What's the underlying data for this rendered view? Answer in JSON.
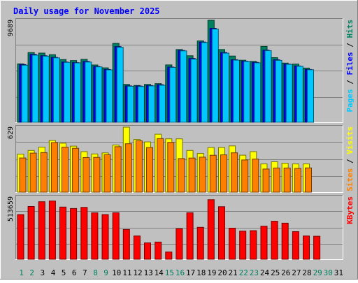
{
  "chart_data": {
    "type": "bar",
    "title": "Daily usage for November 2025",
    "categories": [
      "1",
      "2",
      "3",
      "4",
      "5",
      "6",
      "7",
      "8",
      "9",
      "10",
      "11",
      "12",
      "13",
      "14",
      "15",
      "16",
      "17",
      "18",
      "19",
      "20",
      "21",
      "22",
      "23",
      "24",
      "25",
      "26",
      "27",
      "28",
      "29",
      "30",
      "31"
    ],
    "weekend_days": [
      "1",
      "2",
      "8",
      "9",
      "15",
      "16",
      "22",
      "23",
      "29",
      "30"
    ],
    "panels": [
      {
        "id": "hits",
        "ymax_label": "9689",
        "ymax": 9689,
        "axis_labels": [
          {
            "text": "Pages",
            "color": "#00c8ff"
          },
          {
            "text": "Files",
            "color": "#0000ff"
          },
          {
            "text": "Hits",
            "color": "#008060"
          }
        ],
        "series": [
          {
            "name": "Hits",
            "color": "#008060",
            "values": [
              5550,
              6620,
              6570,
              6420,
              5960,
              5860,
              5980,
              5440,
              5170,
              7490,
              3600,
              3500,
              3600,
              3670,
              5450,
              6910,
              6320,
              7730,
              9689,
              6910,
              6290,
              5890,
              5780,
              7210,
              6140,
              5620,
              5530,
              5150,
              0,
              0,
              0
            ]
          },
          {
            "name": "Files",
            "color": "#0000ff",
            "values": [
              5480,
              6450,
              6320,
              6160,
              5720,
              5670,
              5780,
              5300,
              5020,
              7190,
              3460,
              3440,
              3490,
              3570,
              5240,
              6820,
              6060,
              7620,
              8920,
              6620,
              5940,
              5810,
              5690,
              6850,
              5930,
              5530,
              5350,
              5020,
              0,
              0,
              0
            ]
          },
          {
            "name": "Pages",
            "color": "#00c8ff",
            "values": [
              5420,
              6380,
              6280,
              6120,
              5690,
              5640,
              5720,
              5260,
              4980,
              7120,
              3420,
              3400,
              3460,
              3520,
              5200,
              6780,
              6000,
              7580,
              8850,
              6560,
              5900,
              5780,
              5650,
              6800,
              5880,
              5500,
              5320,
              4990,
              0,
              0,
              0
            ]
          }
        ]
      },
      {
        "id": "visits",
        "ymax_label": "629",
        "ymax": 629,
        "axis_labels": [
          {
            "text": "Sites",
            "color": "#ff8000"
          },
          {
            "text": "Visits",
            "color": "#ffff00"
          }
        ],
        "series": [
          {
            "name": "Visits",
            "color": "#ffff00",
            "values": [
              368,
              404,
              436,
              500,
              474,
              446,
              392,
              370,
              380,
              456,
              629,
              510,
              486,
              561,
              516,
              516,
              404,
              375,
              432,
              432,
              448,
              358,
              392,
              273,
              294,
              280,
              273,
              273,
              0,
              0,
              0
            ]
          },
          {
            "name": "Sites",
            "color": "#ff8000",
            "values": [
              331,
              378,
              383,
              480,
              436,
              425,
              335,
              337,
              362,
              440,
              469,
              497,
              432,
              518,
              482,
              325,
              330,
              339,
              357,
              361,
              381,
              312,
              320,
              224,
              234,
              234,
              230,
              235,
              0,
              0,
              0
            ]
          }
        ]
      },
      {
        "id": "kbytes",
        "ymax_label": "513659",
        "ymax": 513659,
        "axis_labels": [
          {
            "text": "KBytes",
            "color": "#ff0000"
          }
        ],
        "series": [
          {
            "name": "KBytes",
            "color": "#ff0000",
            "values": [
              369000,
              436000,
              475000,
              481000,
              431000,
              419000,
              428000,
              383000,
              369000,
              384000,
              246000,
              192000,
              135000,
              142000,
              60000,
              252000,
              384000,
              264000,
              492000,
              434000,
              257000,
              232000,
              236000,
              273000,
              314000,
              298000,
              228000,
              192000,
              190000,
              0,
              0
            ]
          }
        ]
      }
    ]
  }
}
